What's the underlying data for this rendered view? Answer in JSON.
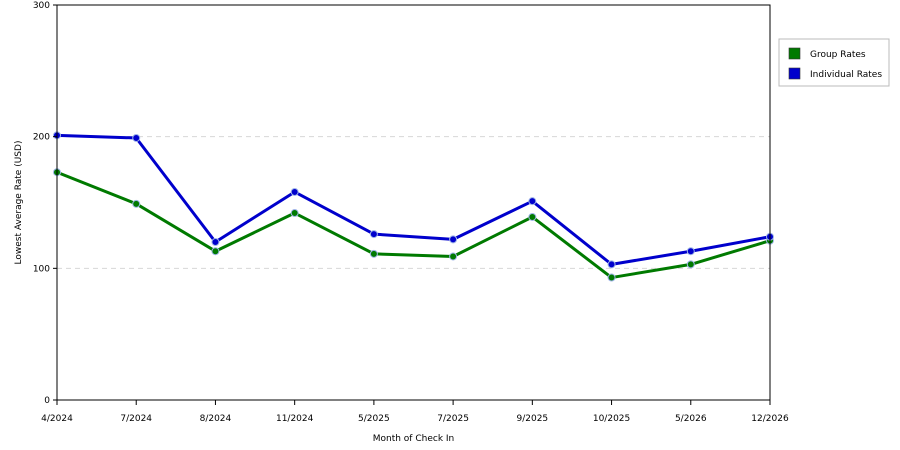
{
  "chart_data": {
    "type": "line",
    "title": "",
    "xlabel": "Month of Check In",
    "ylabel": "Lowest Average Rate (USD)",
    "categories": [
      "4/2024",
      "7/2024",
      "8/2024",
      "11/2024",
      "5/2025",
      "7/2025",
      "9/2025",
      "10/2025",
      "5/2026",
      "12/2026"
    ],
    "ylim": [
      0,
      300
    ],
    "yticks": [
      0,
      100,
      200,
      300
    ],
    "grid": true,
    "legend_position": "right",
    "series": [
      {
        "name": "Group Rates",
        "color": "#007a00",
        "values": [
          173,
          149,
          113,
          142,
          111,
          109,
          139,
          93,
          103,
          121
        ]
      },
      {
        "name": "Individual Rates",
        "color": "#0000cc",
        "values": [
          201,
          199,
          120,
          158,
          126,
          122,
          151,
          103,
          113,
          124
        ]
      }
    ]
  }
}
